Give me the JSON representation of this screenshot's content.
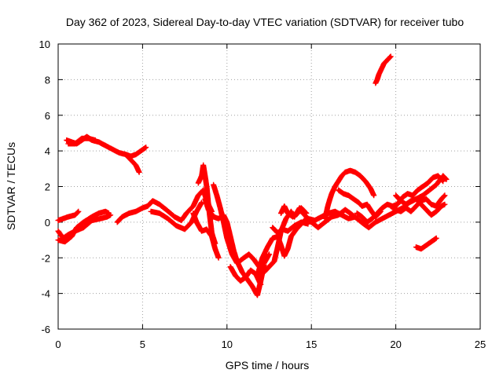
{
  "chart_data": {
    "type": "scatter",
    "title": "Day 362 of 2023, Sidereal Day-to-day VTEC variation (SDTVAR) for receiver tubo",
    "xlabel": "GPS time / hours",
    "ylabel": "SDTVAR / TECUs",
    "xlim": [
      0,
      25
    ],
    "ylim": [
      -6,
      10
    ],
    "xticks": [
      0,
      5,
      10,
      15,
      20,
      25
    ],
    "yticks": [
      -6,
      -4,
      -2,
      0,
      2,
      4,
      6,
      8,
      10
    ],
    "grid": true,
    "marker": "+",
    "series": [
      {
        "name": "SDTVAR",
        "color": "#ff0000",
        "segments": [
          [
            [
              0.0,
              -0.5
            ],
            [
              0.3,
              -0.9
            ],
            [
              0.6,
              -0.7
            ],
            [
              1.0,
              -0.5
            ],
            [
              1.5,
              -0.3
            ],
            [
              2.0,
              0.1
            ],
            [
              2.5,
              0.2
            ],
            [
              2.9,
              0.3
            ],
            [
              3.1,
              0.4
            ]
          ],
          [
            [
              0.0,
              -1.0
            ],
            [
              0.4,
              -1.1
            ],
            [
              0.8,
              -0.8
            ],
            [
              1.1,
              -0.3
            ],
            [
              1.5,
              0.0
            ],
            [
              2.0,
              0.3
            ],
            [
              2.4,
              0.5
            ],
            [
              2.8,
              0.6
            ],
            [
              3.0,
              0.5
            ]
          ],
          [
            [
              0.0,
              0.1
            ],
            [
              0.3,
              0.2
            ],
            [
              0.6,
              0.3
            ],
            [
              1.0,
              0.4
            ],
            [
              1.2,
              0.6
            ]
          ],
          [
            [
              3.5,
              0.0
            ],
            [
              3.8,
              0.3
            ],
            [
              4.2,
              0.5
            ],
            [
              4.6,
              0.6
            ],
            [
              5.0,
              0.8
            ],
            [
              5.3,
              0.9
            ],
            [
              5.6,
              1.2
            ],
            [
              6.0,
              1.0
            ],
            [
              6.4,
              0.7
            ],
            [
              6.9,
              0.3
            ],
            [
              7.3,
              0.1
            ],
            [
              7.6,
              0.5
            ],
            [
              8.0,
              0.9
            ],
            [
              8.3,
              1.5
            ],
            [
              8.6,
              1.8
            ],
            [
              8.8,
              1.2
            ],
            [
              9.1,
              0.6
            ]
          ],
          [
            [
              5.5,
              0.6
            ],
            [
              6.0,
              0.5
            ],
            [
              6.5,
              0.2
            ],
            [
              7.0,
              -0.2
            ],
            [
              7.5,
              -0.4
            ],
            [
              7.9,
              0.0
            ],
            [
              8.2,
              0.6
            ],
            [
              8.5,
              1.1
            ]
          ],
          [
            [
              8.3,
              2.2
            ],
            [
              8.5,
              2.6
            ],
            [
              8.6,
              3.2
            ],
            [
              8.7,
              2.6
            ],
            [
              8.8,
              2.0
            ],
            [
              8.9,
              1.0
            ],
            [
              9.0,
              0.2
            ],
            [
              9.1,
              -0.6
            ],
            [
              9.3,
              -1.2
            ]
          ],
          [
            [
              8.0,
              0.5
            ],
            [
              8.2,
              0.0
            ],
            [
              8.5,
              -0.5
            ],
            [
              8.8,
              -0.4
            ],
            [
              9.1,
              -0.8
            ],
            [
              9.3,
              -1.5
            ],
            [
              9.5,
              -2.0
            ]
          ],
          [
            [
              8.7,
              1.3
            ],
            [
              8.9,
              0.7
            ],
            [
              9.2,
              0.3
            ],
            [
              9.5,
              0.2
            ],
            [
              9.8,
              0.4
            ],
            [
              10.0,
              0.0
            ],
            [
              10.2,
              -0.8
            ],
            [
              10.4,
              -1.6
            ],
            [
              10.6,
              -2.2
            ],
            [
              10.9,
              -2.8
            ],
            [
              11.2,
              -3.2
            ],
            [
              11.5,
              -3.6
            ],
            [
              11.8,
              -4.1
            ],
            [
              12.0,
              -3.3
            ],
            [
              12.2,
              -2.4
            ]
          ],
          [
            [
              9.2,
              2.1
            ],
            [
              9.4,
              1.5
            ],
            [
              9.6,
              0.8
            ],
            [
              9.8,
              0.0
            ],
            [
              10.0,
              -0.9
            ],
            [
              10.3,
              -1.8
            ],
            [
              10.6,
              -2.3
            ],
            [
              11.0,
              -2.0
            ],
            [
              11.3,
              -1.8
            ],
            [
              11.6,
              -2.1
            ],
            [
              11.9,
              -2.5
            ],
            [
              12.2,
              -2.3
            ],
            [
              12.5,
              -1.8
            ]
          ],
          [
            [
              10.2,
              -2.5
            ],
            [
              10.5,
              -3.0
            ],
            [
              10.8,
              -3.3
            ],
            [
              11.1,
              -3.1
            ],
            [
              11.4,
              -2.7
            ],
            [
              11.7,
              -2.9
            ],
            [
              12.0,
              -3.5
            ]
          ],
          [
            [
              11.8,
              -3.0
            ],
            [
              12.1,
              -2.0
            ],
            [
              12.4,
              -1.4
            ],
            [
              12.7,
              -0.9
            ],
            [
              13.0,
              -0.8
            ],
            [
              13.2,
              -1.3
            ],
            [
              13.4,
              -1.9
            ],
            [
              13.6,
              -1.5
            ],
            [
              13.8,
              -0.8
            ],
            [
              14.1,
              -0.4
            ],
            [
              14.4,
              -0.1
            ],
            [
              14.7,
              0.2
            ],
            [
              15.0,
              0.0
            ]
          ],
          [
            [
              12.2,
              -2.8
            ],
            [
              12.5,
              -2.5
            ],
            [
              12.8,
              -2.2
            ],
            [
              13.0,
              -1.4
            ],
            [
              13.2,
              -0.5
            ],
            [
              13.5,
              0.2
            ],
            [
              13.8,
              0.6
            ],
            [
              14.0,
              0.3
            ],
            [
              14.3,
              0.8
            ],
            [
              14.5,
              0.5
            ],
            [
              14.8,
              0.2
            ],
            [
              15.2,
              0.1
            ],
            [
              15.6,
              0.3
            ],
            [
              16.0,
              0.5
            ],
            [
              16.4,
              0.6
            ],
            [
              16.8,
              0.4
            ],
            [
              17.2,
              0.2
            ],
            [
              17.6,
              0.3
            ]
          ],
          [
            [
              12.7,
              -0.3
            ],
            [
              13.0,
              -0.6
            ],
            [
              13.3,
              -0.4
            ],
            [
              13.6,
              -0.5
            ],
            [
              14.0,
              -0.2
            ],
            [
              14.4,
              0.0
            ],
            [
              14.8,
              -0.1
            ]
          ],
          [
            [
              13.2,
              0.5
            ],
            [
              13.4,
              0.9
            ],
            [
              13.6,
              0.5
            ],
            [
              13.9,
              0.3
            ],
            [
              14.2,
              0.5
            ],
            [
              14.4,
              0.8
            ],
            [
              14.7,
              0.5
            ]
          ],
          [
            [
              15.0,
              0.0
            ],
            [
              15.4,
              -0.3
            ],
            [
              15.8,
              0.0
            ],
            [
              16.2,
              0.3
            ],
            [
              16.6,
              0.4
            ],
            [
              17.0,
              0.7
            ],
            [
              17.3,
              0.5
            ],
            [
              17.7,
              0.2
            ],
            [
              18.1,
              -0.1
            ],
            [
              18.4,
              -0.3
            ],
            [
              18.8,
              0.0
            ],
            [
              19.2,
              0.2
            ],
            [
              19.6,
              0.4
            ],
            [
              20.0,
              0.6
            ],
            [
              20.4,
              0.8
            ],
            [
              20.8,
              1.1
            ],
            [
              21.2,
              1.3
            ],
            [
              21.6,
              1.5
            ],
            [
              22.0,
              1.8
            ],
            [
              22.4,
              2.1
            ],
            [
              22.8,
              2.6
            ],
            [
              23.0,
              2.4
            ]
          ],
          [
            [
              15.8,
              0.2
            ],
            [
              16.0,
              1.0
            ],
            [
              16.2,
              1.6
            ],
            [
              16.4,
              2.0
            ],
            [
              16.6,
              2.3
            ],
            [
              16.8,
              2.6
            ],
            [
              17.0,
              2.8
            ],
            [
              17.3,
              2.9
            ],
            [
              17.6,
              2.8
            ],
            [
              17.9,
              2.6
            ],
            [
              18.2,
              2.3
            ],
            [
              18.5,
              1.9
            ],
            [
              18.7,
              1.5
            ]
          ],
          [
            [
              16.6,
              1.8
            ],
            [
              16.9,
              1.6
            ],
            [
              17.2,
              1.5
            ],
            [
              17.5,
              1.3
            ],
            [
              17.8,
              1.1
            ],
            [
              18.0,
              0.9
            ],
            [
              18.3,
              1.0
            ],
            [
              18.5,
              0.7
            ],
            [
              18.8,
              0.3
            ],
            [
              19.1,
              0.6
            ]
          ],
          [
            [
              17.7,
              0.5
            ],
            [
              18.0,
              0.3
            ],
            [
              18.3,
              0.0
            ],
            [
              18.6,
              0.2
            ],
            [
              18.9,
              0.5
            ],
            [
              19.2,
              0.8
            ],
            [
              19.5,
              1.0
            ],
            [
              19.8,
              0.9
            ],
            [
              20.1,
              1.0
            ],
            [
              20.4,
              1.4
            ],
            [
              20.7,
              1.6
            ],
            [
              21.0,
              1.5
            ],
            [
              21.3,
              1.8
            ],
            [
              21.6,
              2.0
            ],
            [
              21.9,
              2.2
            ],
            [
              22.2,
              2.5
            ],
            [
              22.5,
              2.6
            ],
            [
              22.8,
              2.3
            ]
          ],
          [
            [
              19.7,
              0.9
            ],
            [
              20.0,
              0.7
            ],
            [
              20.3,
              0.6
            ],
            [
              20.6,
              0.8
            ],
            [
              20.9,
              0.6
            ],
            [
              21.2,
              0.9
            ],
            [
              21.5,
              1.2
            ],
            [
              21.8,
              1.3
            ],
            [
              22.1,
              1.0
            ],
            [
              22.4,
              0.9
            ],
            [
              22.7,
              1.3
            ],
            [
              22.9,
              1.5
            ]
          ],
          [
            [
              20.0,
              1.5
            ],
            [
              20.3,
              1.2
            ],
            [
              20.6,
              1.0
            ],
            [
              20.9,
              1.2
            ],
            [
              21.2,
              1.3
            ],
            [
              21.5,
              1.0
            ],
            [
              21.8,
              0.7
            ],
            [
              22.1,
              0.4
            ],
            [
              22.4,
              0.6
            ],
            [
              22.7,
              0.9
            ],
            [
              22.9,
              1.0
            ]
          ],
          [
            [
              21.2,
              -1.4
            ],
            [
              21.5,
              -1.5
            ],
            [
              21.8,
              -1.3
            ],
            [
              22.1,
              -1.1
            ],
            [
              22.4,
              -0.9
            ]
          ],
          [
            [
              0.5,
              4.6
            ],
            [
              0.8,
              4.5
            ],
            [
              1.1,
              4.4
            ],
            [
              1.4,
              4.6
            ],
            [
              1.7,
              4.8
            ],
            [
              2.0,
              4.6
            ],
            [
              2.4,
              4.5
            ],
            [
              2.8,
              4.3
            ],
            [
              3.2,
              4.1
            ],
            [
              3.6,
              3.9
            ],
            [
              4.0,
              3.8
            ],
            [
              4.3,
              3.7
            ],
            [
              4.6,
              3.8
            ],
            [
              4.9,
              4.0
            ],
            [
              5.2,
              4.2
            ]
          ],
          [
            [
              4.0,
              3.8
            ],
            [
              4.2,
              3.6
            ],
            [
              4.4,
              3.4
            ],
            [
              4.6,
              3.2
            ],
            [
              4.7,
              3.0
            ],
            [
              4.8,
              2.8
            ]
          ],
          [
            [
              0.6,
              4.4
            ],
            [
              1.0,
              4.4
            ],
            [
              1.4,
              4.7
            ],
            [
              1.8,
              4.7
            ],
            [
              2.2,
              4.6
            ]
          ],
          [
            [
              18.8,
              7.8
            ],
            [
              18.9,
              8.0
            ],
            [
              19.0,
              8.3
            ],
            [
              19.1,
              8.5
            ],
            [
              19.2,
              8.7
            ],
            [
              19.3,
              8.9
            ],
            [
              19.4,
              9.0
            ],
            [
              19.5,
              9.1
            ],
            [
              19.6,
              9.2
            ],
            [
              19.7,
              9.3
            ]
          ]
        ]
      }
    ]
  }
}
